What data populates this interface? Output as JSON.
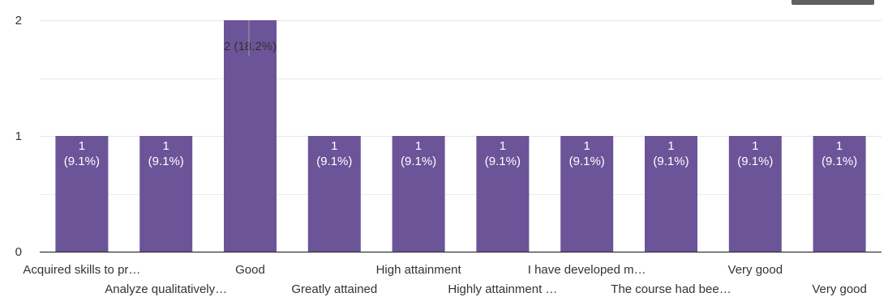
{
  "chart_data": {
    "type": "bar",
    "categories": [
      "Acquired skills to pr…",
      "Analyze qualitatively…",
      "Good",
      "Greatly attained",
      "High attainment",
      "Highly attainment …",
      "I have developed m…",
      "The course had bee…",
      "Very good",
      "Very good"
    ],
    "values": [
      1,
      1,
      2,
      1,
      1,
      1,
      1,
      1,
      1,
      1
    ],
    "data_labels": [
      [
        "1",
        "(9.1%)"
      ],
      [
        "1",
        "(9.1%)"
      ],
      [
        "2 (18.2%)"
      ],
      [
        "1",
        "(9.1%)"
      ],
      [
        "1",
        "(9.1%)"
      ],
      [
        "1",
        "(9.1%)"
      ],
      [
        "1",
        "(9.1%)"
      ],
      [
        "1",
        "(9.1%)"
      ],
      [
        "1",
        "(9.1%)"
      ],
      [
        "1",
        "(9.1%)"
      ]
    ],
    "yticks": [
      "0",
      "1",
      "2"
    ],
    "ylim": [
      0,
      2
    ],
    "grid": true,
    "bar_color": "#6c5499",
    "grid_color": "#e6e6e6",
    "axis_color": "#333333"
  }
}
